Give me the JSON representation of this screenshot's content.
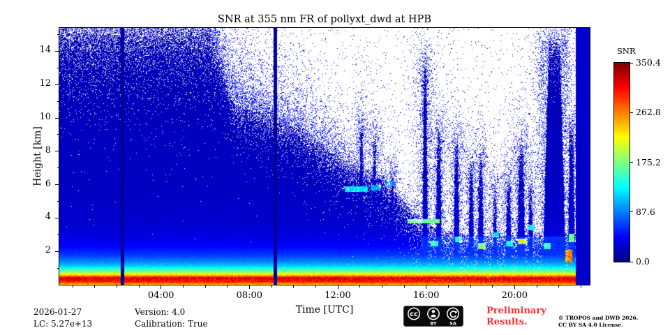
{
  "chart_data": {
    "type": "heatmap",
    "title": "SNR at 355 nm FR of pollyxt_dwd at HPB",
    "xlabel": "Time [UTC]",
    "ylabel": "Height [km]",
    "x_axis": {
      "range_hours": [
        -0.6,
        23.4
      ],
      "major_tick_hours": [
        4,
        8,
        12,
        16,
        20
      ],
      "major_tick_labels": [
        "04:00",
        "08:00",
        "12:00",
        "16:00",
        "20:00"
      ],
      "minor_tick_step_hours": 1
    },
    "y_axis": {
      "range_km": [
        0,
        15.4
      ],
      "major_ticks_km": [
        2,
        4,
        6,
        8,
        10,
        12,
        14
      ],
      "major_tick_labels": [
        "2",
        "4",
        "6",
        "8",
        "10",
        "12",
        "14"
      ],
      "minor_tick_step_km": 1
    },
    "colorbar": {
      "label": "SNR",
      "min": 0.0,
      "max": 350.4,
      "ticks": [
        0.0,
        87.6,
        175.2,
        262.8,
        350.4
      ],
      "tick_labels": [
        "0.0",
        "87.6",
        "175.2",
        "262.8",
        "350.4"
      ],
      "colormap": "jet"
    },
    "background_profile": {
      "heights_km": [
        0,
        0.18,
        0.42,
        0.55,
        0.7,
        0.9,
        1.1,
        1.4,
        1.8,
        2.3,
        3.0,
        4.0,
        6.0,
        10.0,
        15.4
      ],
      "snr": [
        235,
        300,
        318,
        250,
        198,
        152,
        118,
        88,
        62,
        44,
        32,
        26,
        23,
        21,
        19
      ]
    },
    "noise_envelope_km": {
      "hours": [
        -0.6,
        6.2,
        7.3,
        8.5,
        10.2,
        11.3,
        12.3,
        13.4,
        14.2,
        14.8,
        15.4,
        16.1,
        16.9,
        18.0,
        20.0,
        21.0,
        22.0,
        22.65,
        23.4
      ],
      "top_km": [
        15.4,
        15.4,
        11.0,
        10.3,
        9.4,
        8.4,
        7.4,
        6.9,
        6.4,
        5.3,
        4.4,
        3.6,
        3.2,
        3.0,
        2.9,
        3.1,
        3.3,
        3.0,
        3.0
      ]
    },
    "calibration_gaps": [
      {
        "center_hour": 2.26,
        "half_width_hour": 0.07,
        "snr": 8
      },
      {
        "center_hour": 9.18,
        "half_width_hour": 0.07,
        "snr": 8
      }
    ],
    "solid_low_snr_block": {
      "start_hour": 22.78,
      "snr": 26
    },
    "plumes": [
      {
        "t0": 12.95,
        "t1": 13.18,
        "top_km": 9.6
      },
      {
        "t0": 13.55,
        "t1": 13.78,
        "top_km": 8.9
      },
      {
        "t0": 14.35,
        "t1": 14.58,
        "top_km": 6.6
      },
      {
        "t0": 15.82,
        "t1": 16.08,
        "top_km": 13.2
      },
      {
        "t0": 16.42,
        "t1": 16.72,
        "top_km": 9.2
      },
      {
        "t0": 17.22,
        "t1": 17.52,
        "top_km": 8.6
      },
      {
        "t0": 17.9,
        "t1": 18.18,
        "top_km": 7.2
      },
      {
        "t0": 18.32,
        "t1": 18.62,
        "top_km": 7.7
      },
      {
        "t0": 19.0,
        "t1": 19.22,
        "top_km": 5.9
      },
      {
        "t0": 19.58,
        "t1": 19.88,
        "top_km": 6.5
      },
      {
        "t0": 20.1,
        "t1": 20.5,
        "top_km": 8.3
      },
      {
        "t0": 20.6,
        "t1": 20.85,
        "top_km": 6.1
      },
      {
        "t0": 21.25,
        "t1": 22.35,
        "top_km": 14.6
      },
      {
        "t0": 22.4,
        "t1": 22.75,
        "top_km": 9.6
      }
    ],
    "cloud_features": [
      {
        "t0": 15.8,
        "t1": 22.7,
        "h0": 1.9,
        "h1": 2.9,
        "snr": 60
      },
      {
        "t0": 12.3,
        "t1": 13.35,
        "h0": 5.55,
        "h1": 5.9,
        "snr": 120
      },
      {
        "t0": 13.5,
        "t1": 13.95,
        "h0": 5.65,
        "h1": 6.0,
        "snr": 100
      },
      {
        "t0": 14.15,
        "t1": 14.6,
        "h0": 5.9,
        "h1": 6.25,
        "snr": 90
      },
      {
        "t0": 15.15,
        "t1": 16.6,
        "h0": 3.7,
        "h1": 3.95,
        "snr": 170
      },
      {
        "t0": 16.2,
        "t1": 16.55,
        "h0": 2.3,
        "h1": 2.62,
        "snr": 150
      },
      {
        "t0": 17.3,
        "t1": 17.62,
        "h0": 2.55,
        "h1": 2.9,
        "snr": 135
      },
      {
        "t0": 18.35,
        "t1": 18.68,
        "h0": 2.15,
        "h1": 2.5,
        "snr": 175
      },
      {
        "t0": 19.05,
        "t1": 19.3,
        "h0": 2.85,
        "h1": 3.12,
        "snr": 120
      },
      {
        "t0": 19.6,
        "t1": 19.92,
        "h0": 2.3,
        "h1": 2.62,
        "snr": 140
      },
      {
        "t0": 20.15,
        "t1": 20.55,
        "h0": 2.42,
        "h1": 2.75,
        "snr": 210
      },
      {
        "t0": 20.62,
        "t1": 20.92,
        "h0": 3.25,
        "h1": 3.6,
        "snr": 130
      },
      {
        "t0": 21.3,
        "t1": 21.62,
        "h0": 2.15,
        "h1": 2.5,
        "snr": 150
      },
      {
        "t0": 22.3,
        "t1": 22.62,
        "h0": 1.35,
        "h1": 2.1,
        "snr": 260
      },
      {
        "t0": 22.45,
        "t1": 22.72,
        "h0": 2.55,
        "h1": 3.05,
        "snr": 170
      }
    ],
    "speckle": {
      "boundary_hour": 6.5,
      "dither_scale_left": 1.6,
      "dither_scale_right": 0.9,
      "hole_amp": 0.55,
      "noise_hours": [
        -0.6,
        6.5,
        12,
        14.5,
        23.4
      ],
      "noise_amp": [
        0.55,
        0.55,
        0.42,
        0.25,
        0.22
      ],
      "noise_scale": [
        2.2,
        2.2,
        1.3,
        0.9,
        0.8
      ],
      "base_dot_p": 0.012
    }
  },
  "footer": {
    "date": "2026-01-27",
    "lc": "LC: 5.27e+13",
    "version": "Version: 4.0",
    "calibration": "Calibration: True",
    "preliminary": {
      "line1": "Preliminary",
      "line2": "Results.",
      "color": "#ff2e2e"
    },
    "license_badge": {
      "cc": "cc",
      "by": "BY",
      "sa": "SA"
    },
    "copyright": {
      "line1": "© TROPOS and DWD 2026.",
      "line2": "CC BY SA 4.0 License."
    }
  }
}
